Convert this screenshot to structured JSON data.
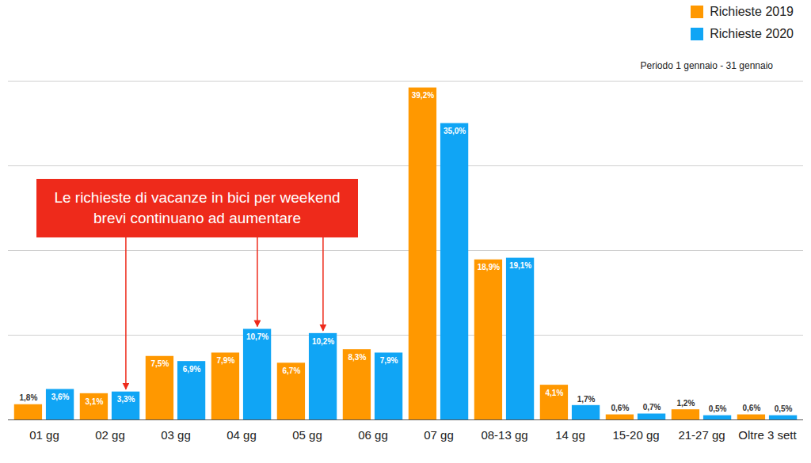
{
  "chart_data": {
    "type": "bar",
    "subtitle": "Periodo 1 gennaio - 31 gennaio",
    "categories": [
      "01 gg",
      "02 gg",
      "03 gg",
      "04 gg",
      "05 gg",
      "06 gg",
      "07 gg",
      "08-13 gg",
      "14 gg",
      "15-20 gg",
      "21-27 gg",
      "Oltre 3 sett"
    ],
    "series": [
      {
        "name": "Richieste 2019",
        "color": "#ff9800",
        "values": [
          1.8,
          3.1,
          7.5,
          7.9,
          6.7,
          8.3,
          39.2,
          18.9,
          4.1,
          0.6,
          1.2,
          0.6
        ],
        "value_labels": [
          "1,8%",
          "3,1%",
          "7,5%",
          "7,9%",
          "6,7%",
          "8,3%",
          "39,2%",
          "18,9%",
          "4,1%",
          "0,6%",
          "1,2%",
          "0,6%"
        ]
      },
      {
        "name": "Richieste 2020",
        "color": "#10a5f5",
        "values": [
          3.6,
          3.3,
          6.9,
          10.7,
          10.2,
          7.9,
          35.0,
          19.1,
          1.7,
          0.7,
          0.5,
          0.5
        ],
        "value_labels": [
          "3,6%",
          "3,3%",
          "6,9%",
          "10,7%",
          "10,2%",
          "7,9%",
          "35,0%",
          "19,1%",
          "1,7%",
          "0,7%",
          "0,5%",
          "0,5%"
        ]
      }
    ],
    "ylim": [
      0,
      40
    ],
    "yticks": [
      0,
      10,
      20,
      30,
      40
    ],
    "grid": true,
    "tick_labels": "x",
    "data_labels": true,
    "legend": "top-right",
    "annotations": [
      {
        "text": "Le richieste di vacanze in bici per weekend\nbrevi continuano ad aumentare",
        "categories": [
          "02 gg",
          "04 gg",
          "05 gg"
        ],
        "series": "Richieste 2020"
      }
    ]
  }
}
